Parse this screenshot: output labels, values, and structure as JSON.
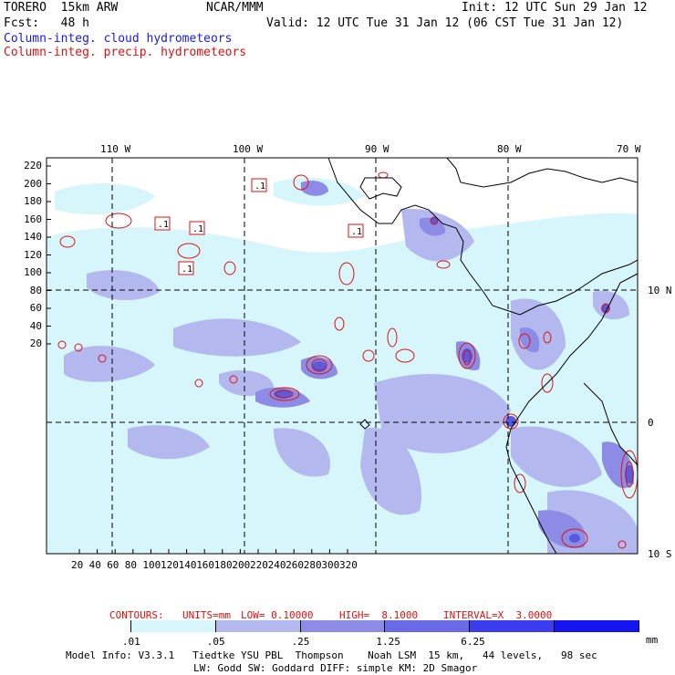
{
  "header": {
    "model": "TORERO  15km ARW",
    "org": "NCAR/MMM",
    "init": "Init: 12 UTC Sun 29 Jan 12",
    "fcst": "Fcst:   48 h",
    "valid": "Valid: 12 UTC Tue 31 Jan 12 (06 CST Tue 31 Jan 12)",
    "field_cloud": "Column-integ. cloud hydrometeors",
    "field_precip": "Column-integ. precip. hydrometeors"
  },
  "map": {
    "lon_labels": [
      "110 W",
      "100 W",
      "90 W",
      "80 W",
      "70 W"
    ],
    "lat_labels": [
      "10 N",
      "0",
      "10 S"
    ],
    "y_ticks": [
      "220",
      "200",
      "180",
      "160",
      "140",
      "120",
      "100",
      "80",
      "60",
      "40",
      "20"
    ],
    "x_ticks": [
      "20",
      "40",
      "60",
      "80",
      "100",
      "120",
      "140",
      "160",
      "180",
      "200",
      "220",
      "240",
      "260",
      "280",
      "300",
      "320"
    ],
    "contour_labels": [
      ".1",
      ".1",
      ".1",
      ".1",
      ".1"
    ],
    "colors": {
      "light_cyan": "#d6f6fb",
      "light_blue": "#b3b8ef",
      "mid_blue": "#8c8ce6",
      "dark_blue": "#5a5adf",
      "contour_red": "#e01010"
    }
  },
  "contours_info": {
    "label": "CONTOURS:",
    "units": "UNITS=mm",
    "low": "LOW= 0.10000",
    "high": "HIGH=  8.1000",
    "interval": "INTERVAL=X  3.0000"
  },
  "colorbar": {
    "labels": [
      ".01",
      ".05",
      ".25",
      "1.25",
      "6.25"
    ],
    "unit": "mm",
    "colors": [
      "#ffffff",
      "#d6f6fb",
      "#b3b8ef",
      "#8c8ce6",
      "#6a6ae6",
      "#3c3cef",
      "#1414f0"
    ]
  },
  "footer": {
    "line1": "Model Info: V3.3.1   Tiedtke YSU PBL  Thompson    Noah LSM  15 km,   44 levels,   98 sec",
    "line2": "LW: Godd SW: Goddard DIFF: simple KM: 2D Smagor"
  }
}
